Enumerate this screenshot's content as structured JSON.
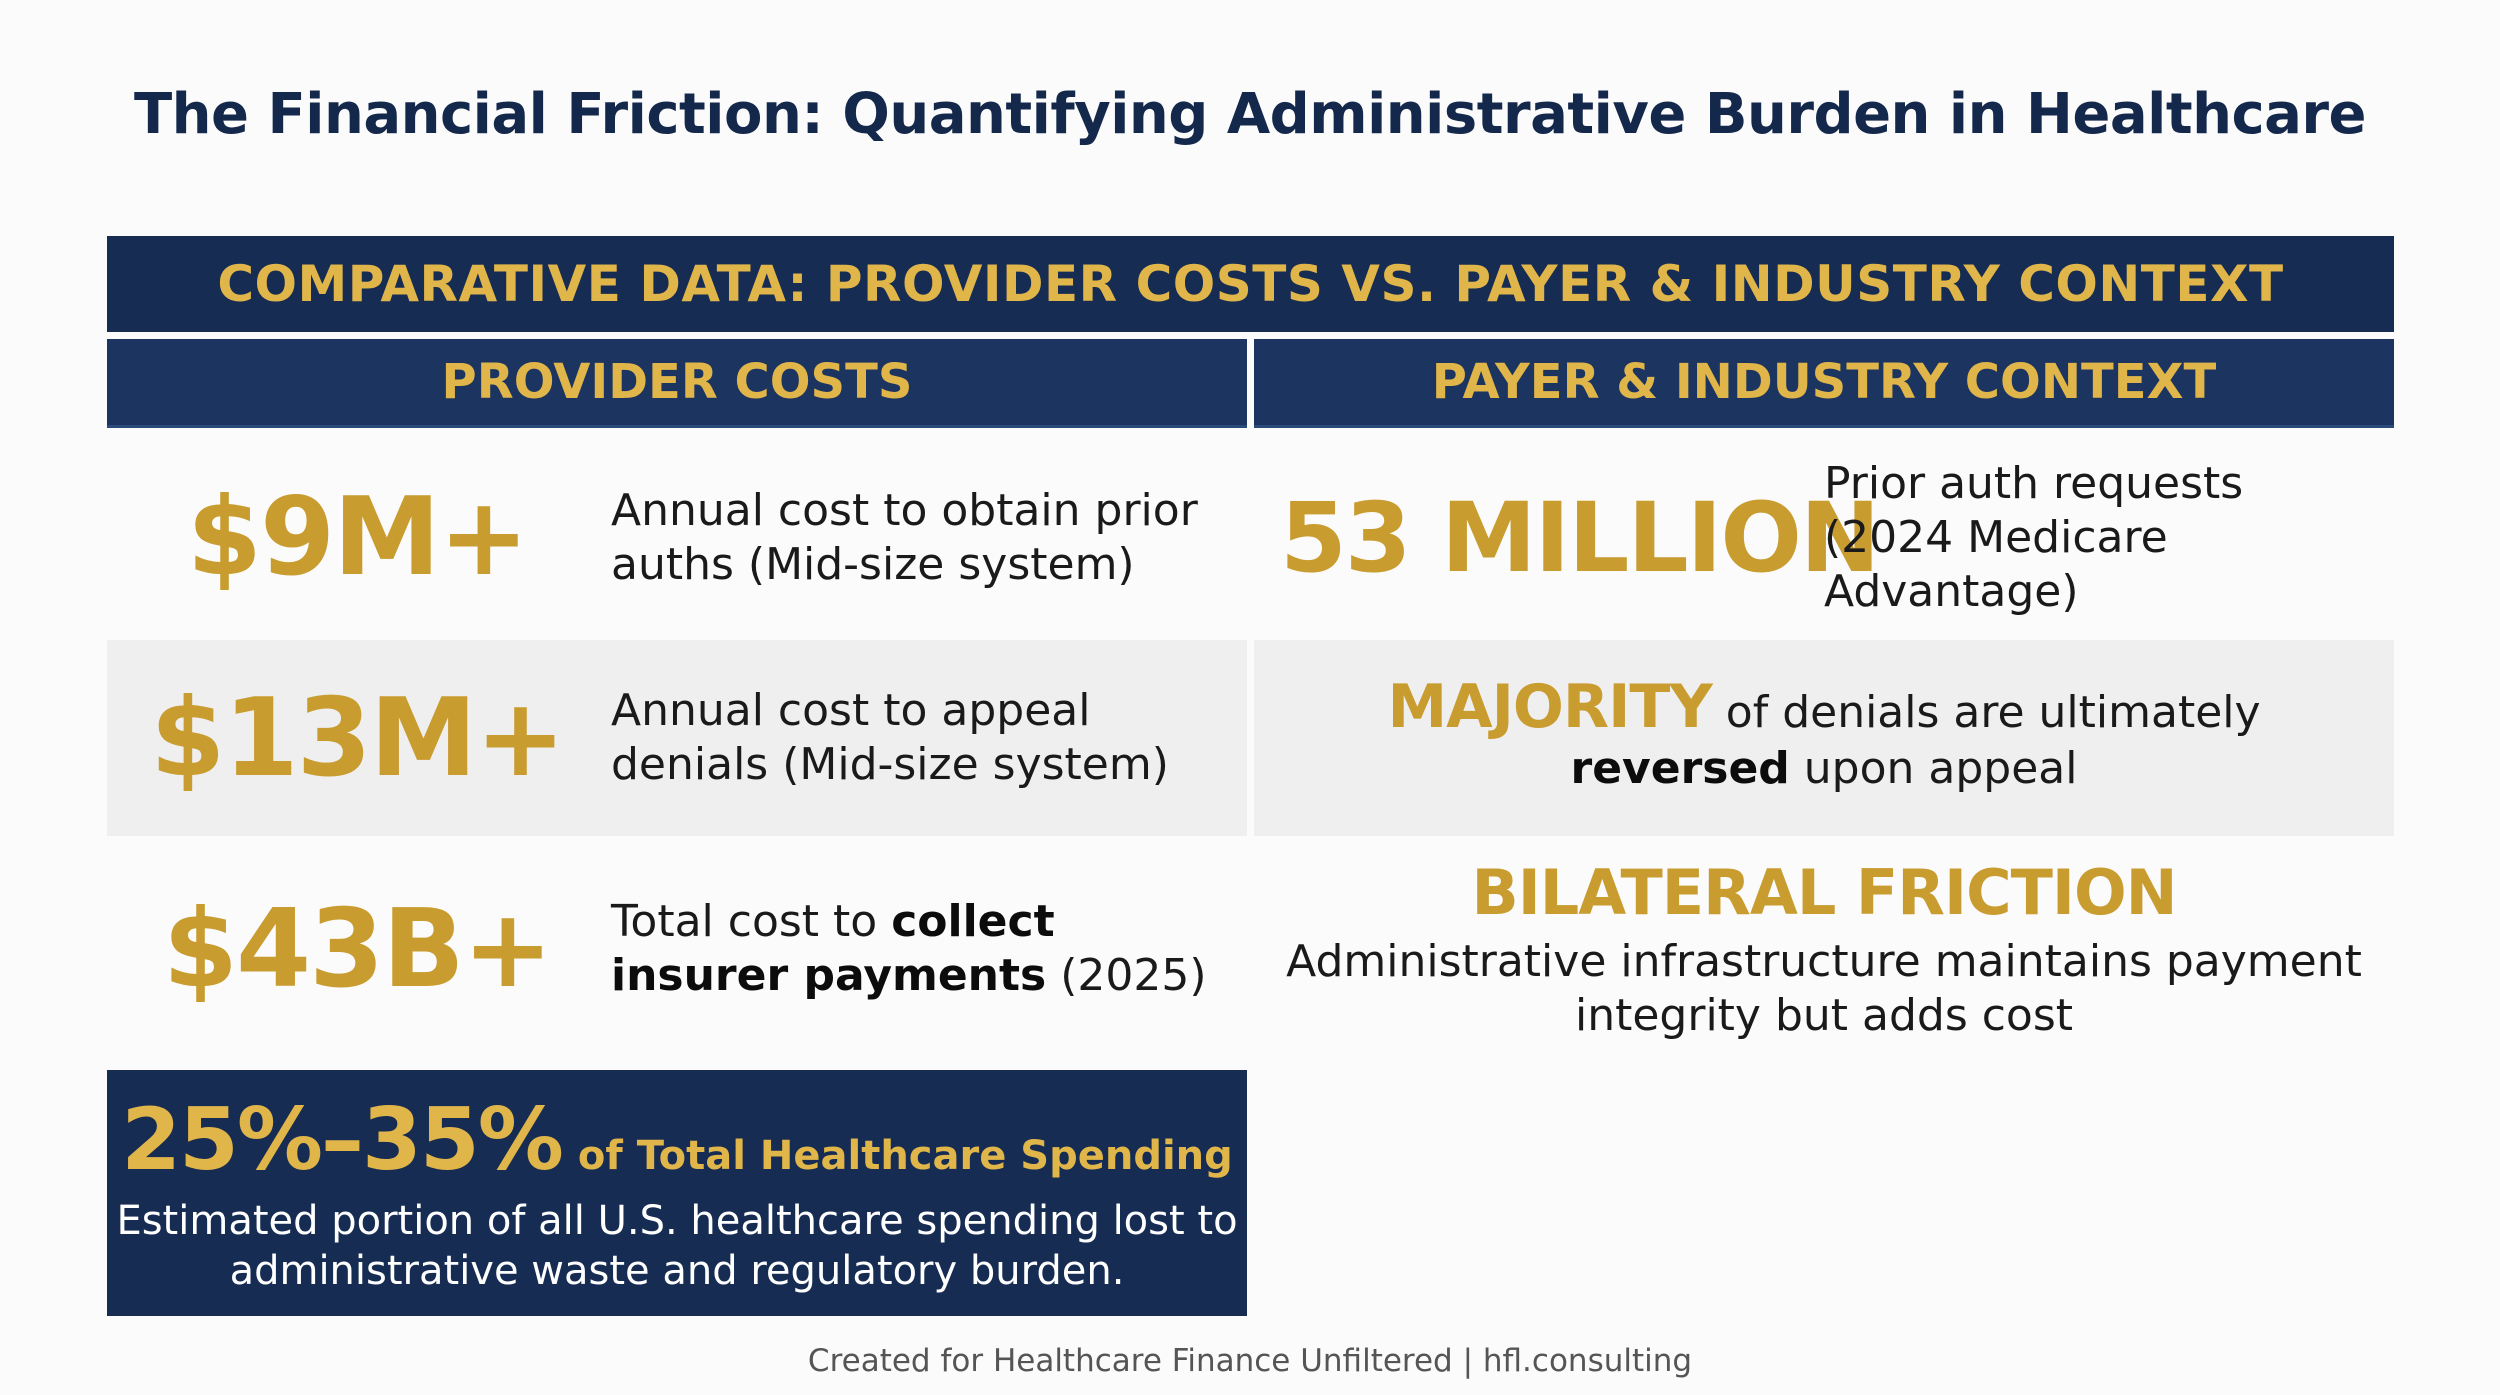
{
  "title": "The Financial Friction: Quantifying Administrative Burden in Healthcare",
  "banner": "COMPARATIVE DATA: PROVIDER COSTS VS. PAYER & INDUSTRY CONTEXT",
  "columns": {
    "left": "PROVIDER COSTS",
    "right": "PAYER & INDUSTRY CONTEXT"
  },
  "provider": [
    {
      "value": "$9M+",
      "desc_plain": "Annual cost to obtain prior auths (Mid-size system)"
    },
    {
      "value": "$13M+",
      "desc_plain": "Annual cost to appeal denials (Mid-size system)"
    },
    {
      "value": "$43B+",
      "desc_pre": "Total cost to ",
      "desc_bold": "collect insurer payments",
      "desc_post": " (2025)"
    }
  ],
  "payer": {
    "r1_value": "53 MILLION",
    "r1_desc": "Prior auth requests (2024 Medicare Advantage)",
    "r2_gold": "MAJORITY",
    "r2_line1_rest": " of denials are ultimately",
    "r2_bold": "reversed",
    "r2_line2_rest": " upon appeal",
    "r3_head": "BILATERAL FRICTION",
    "r3_sub": "Administrative infrastructure maintains payment integrity but adds cost"
  },
  "callout": {
    "pct": "25%–35%",
    "pct_label": "of Total Healthcare Spending",
    "body": "Estimated portion of all U.S. healthcare spending lost to administrative waste and regulatory burden."
  },
  "footer": "Created for Healthcare Finance Unfiltered | hfl.consulting",
  "colors": {
    "navy": "#162c52",
    "gold": "#c99c2f",
    "banner_gold": "#e0b54a",
    "shade": "#efefef"
  }
}
